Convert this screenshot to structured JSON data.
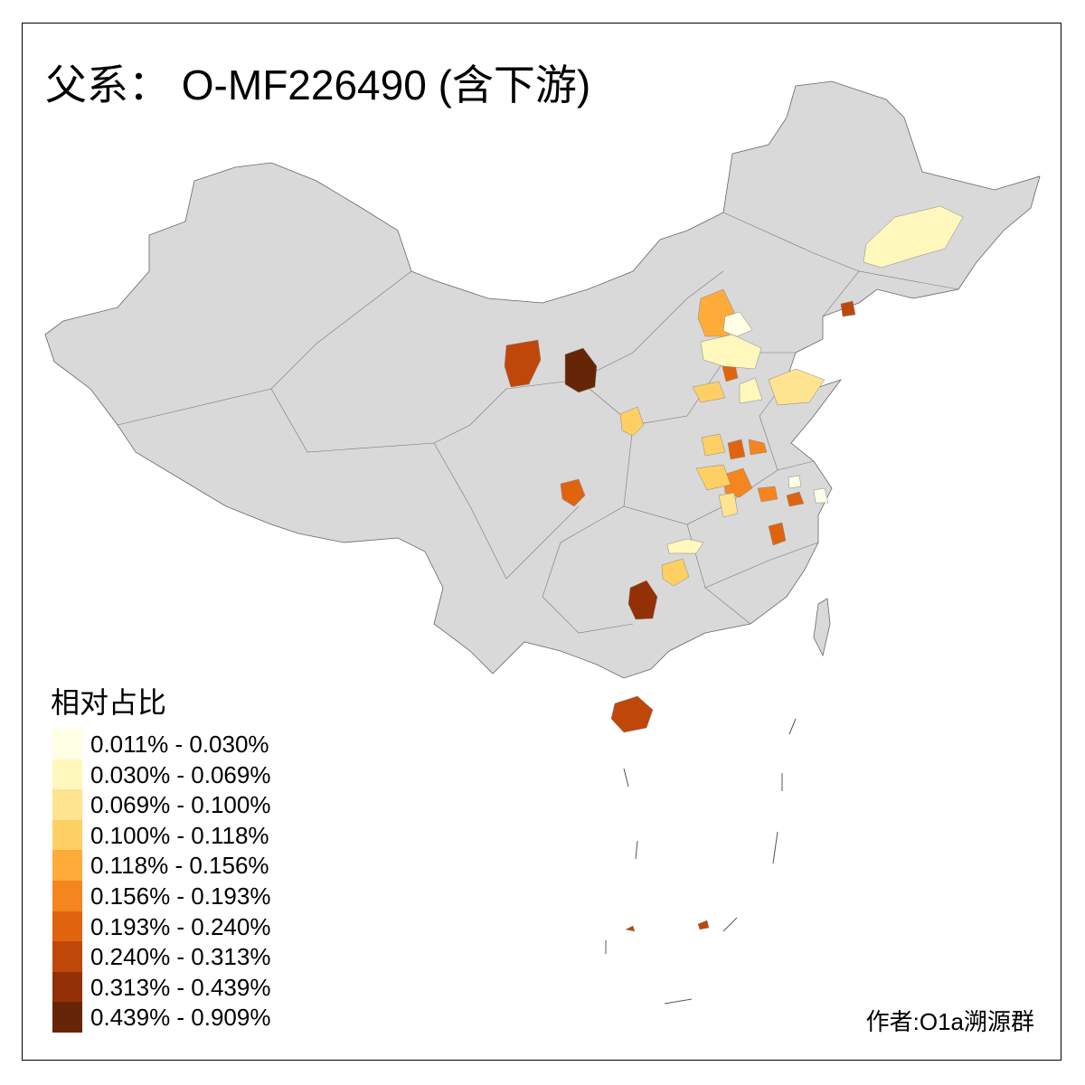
{
  "title": "父系： O-MF226490 (含下游)",
  "legend": {
    "title": "相对占比",
    "bins": [
      {
        "label": "0.011% - 0.030%",
        "color": "#FFFFE5"
      },
      {
        "label": "0.030% - 0.069%",
        "color": "#FFF7BC"
      },
      {
        "label": "0.069% - 0.100%",
        "color": "#FEE391"
      },
      {
        "label": "0.100% - 0.118%",
        "color": "#FED064"
      },
      {
        "label": "0.118% - 0.156%",
        "color": "#FEAB3A"
      },
      {
        "label": "0.156% - 0.193%",
        "color": "#F4851F"
      },
      {
        "label": "0.193% - 0.240%",
        "color": "#E0640F"
      },
      {
        "label": "0.240% - 0.313%",
        "color": "#C0470A"
      },
      {
        "label": "0.313% - 0.439%",
        "color": "#933005"
      },
      {
        "label": "0.439% - 0.909%",
        "color": "#662506"
      }
    ]
  },
  "base_color": "#D9D9D9",
  "credit": "作者:O1a溯源群"
}
